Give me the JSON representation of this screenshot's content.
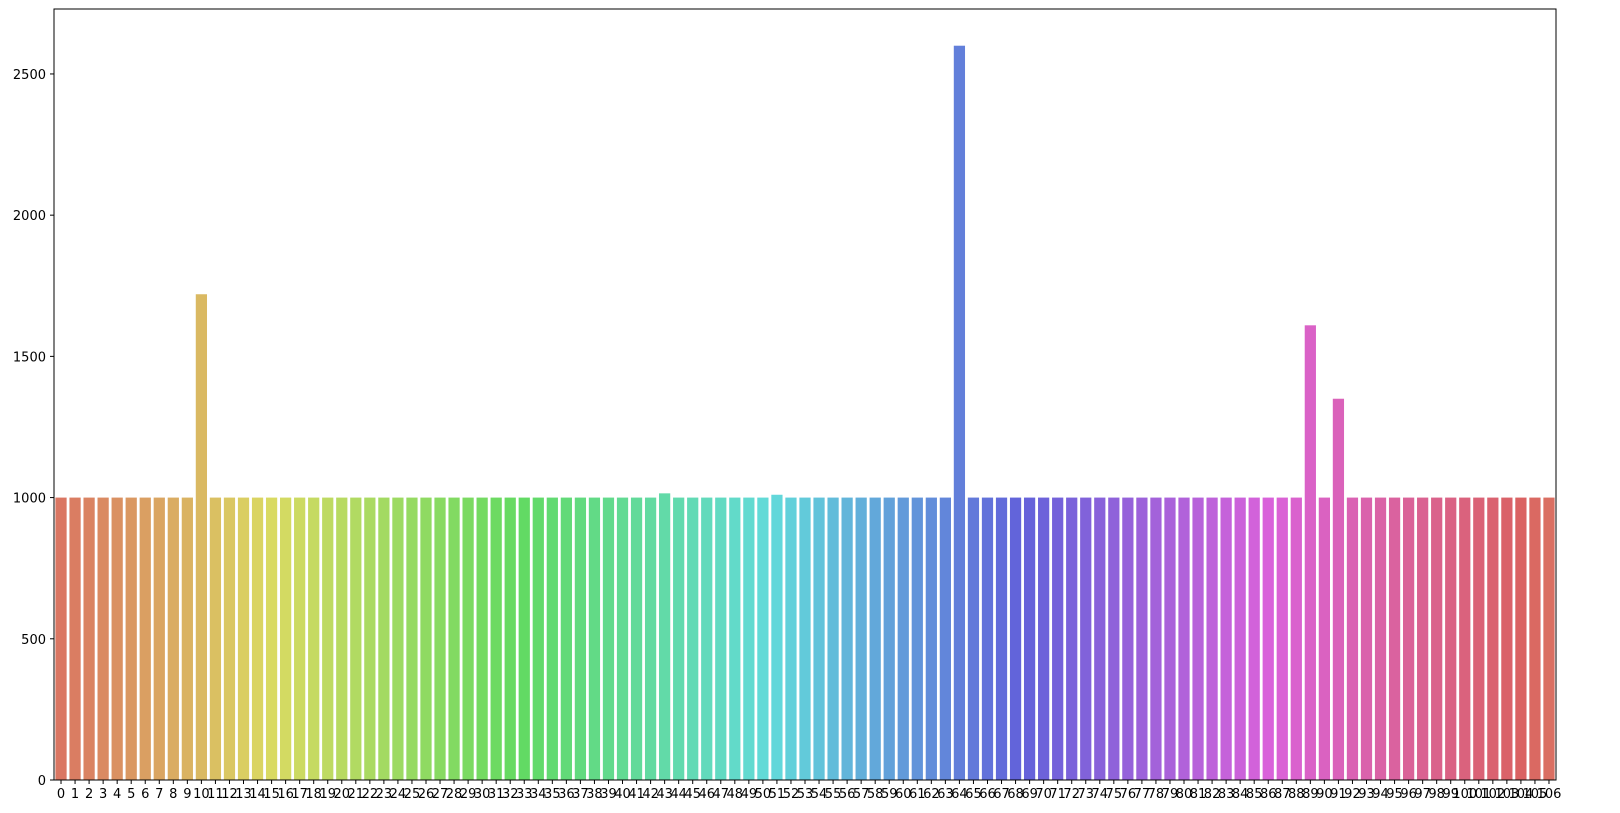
{
  "chart_data": {
    "type": "bar",
    "title": "",
    "xlabel": "",
    "ylabel": "",
    "ylim": [
      0,
      2730
    ],
    "yticks": [
      0,
      500,
      1000,
      1500,
      2000,
      2500
    ],
    "categories": [
      "0",
      "1",
      "2",
      "3",
      "4",
      "5",
      "6",
      "7",
      "8",
      "9",
      "10",
      "11",
      "12",
      "13",
      "14",
      "15",
      "16",
      "17",
      "18",
      "19",
      "20",
      "21",
      "22",
      "23",
      "24",
      "25",
      "26",
      "27",
      "28",
      "29",
      "30",
      "31",
      "32",
      "33",
      "34",
      "35",
      "36",
      "37",
      "38",
      "39",
      "40",
      "41",
      "42",
      "43",
      "44",
      "45",
      "46",
      "47",
      "48",
      "49",
      "50",
      "51",
      "52",
      "53",
      "54",
      "55",
      "56",
      "57",
      "58",
      "59",
      "60",
      "61",
      "62",
      "63",
      "64",
      "65",
      "66",
      "67",
      "68",
      "69",
      "70",
      "71",
      "72",
      "73",
      "74",
      "75",
      "76",
      "77",
      "78",
      "79",
      "80",
      "81",
      "82",
      "83",
      "84",
      "85",
      "86",
      "87",
      "88",
      "89",
      "90",
      "91",
      "92",
      "93",
      "94",
      "95",
      "96",
      "97",
      "98",
      "99",
      "100",
      "101",
      "102",
      "103",
      "104",
      "105",
      "106"
    ],
    "values": [
      1000,
      1000,
      1000,
      1000,
      1000,
      1000,
      1000,
      1000,
      1000,
      1000,
      1720,
      1000,
      1000,
      1000,
      1000,
      1000,
      1000,
      1000,
      1000,
      1000,
      1000,
      1000,
      1000,
      1000,
      1000,
      1000,
      1000,
      1000,
      1000,
      1000,
      1000,
      1000,
      1000,
      1000,
      1000,
      1000,
      1000,
      1000,
      1000,
      1000,
      1000,
      1000,
      1000,
      1015,
      1000,
      1000,
      1000,
      1000,
      1000,
      1000,
      1000,
      1010,
      1000,
      1000,
      1000,
      1000,
      1000,
      1000,
      1000,
      1000,
      1000,
      1000,
      1000,
      1000,
      2600,
      1000,
      1000,
      1000,
      1000,
      1000,
      1000,
      1000,
      1000,
      1000,
      1000,
      1000,
      1000,
      1000,
      1000,
      1000,
      1000,
      1000,
      1000,
      1000,
      1000,
      1000,
      1000,
      1000,
      1000,
      1610,
      1000,
      1350,
      1000,
      1000,
      1000,
      1000,
      1000,
      1000,
      1000,
      1000,
      1000,
      1000,
      1000,
      1000,
      1000,
      1000,
      1000
    ],
    "grid": false,
    "legend": "none",
    "palette": "husl"
  }
}
